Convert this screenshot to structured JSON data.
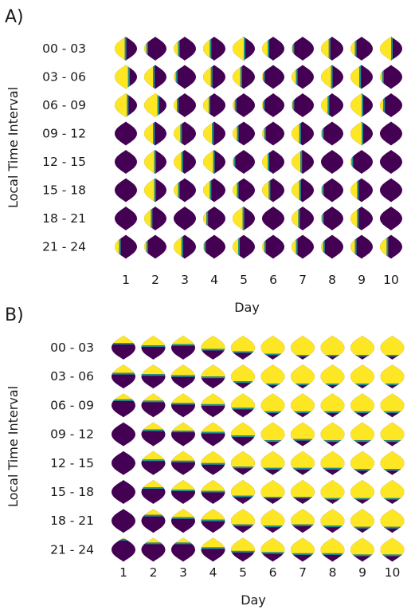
{
  "colors": {
    "low": "#440154",
    "mid": "#21918c",
    "high": "#fde725"
  },
  "chart_data": [
    {
      "panel": "A)",
      "type": "heatmap",
      "xlabel": "Day",
      "ylabel": "Local Time Interval",
      "columns": [
        "1",
        "2",
        "3",
        "4",
        "5",
        "6",
        "7",
        "8",
        "9",
        "10"
      ],
      "rows": [
        "00 - 03",
        "03 - 06",
        "06 - 09",
        "09 - 12",
        "12 - 15",
        "15 - 18",
        "18 - 21",
        "21 - 24"
      ],
      "cell_yellow_fraction": [
        [
          0.45,
          0.1,
          0.2,
          0.3,
          0.5,
          0.25,
          0.05,
          0.35,
          0.2,
          0.5
        ],
        [
          0.6,
          0.4,
          0.1,
          0.35,
          0.35,
          0.05,
          0.2,
          0.45,
          0.4,
          0.1
        ],
        [
          0.55,
          0.6,
          0.15,
          0.25,
          0.1,
          0.05,
          0.05,
          0.3,
          0.5,
          0.15
        ],
        [
          0.0,
          0.4,
          0.3,
          0.4,
          0.2,
          0.1,
          0.35,
          0.05,
          0.5,
          0.0
        ],
        [
          0.0,
          0.45,
          0.35,
          0.45,
          0.05,
          0.25,
          0.4,
          0.0,
          0.05,
          0.0
        ],
        [
          0.0,
          0.45,
          0.2,
          0.3,
          0.2,
          0.3,
          0.35,
          0.05,
          0.3,
          0.0
        ],
        [
          0.0,
          0.3,
          0.0,
          0.15,
          0.45,
          0.0,
          0.3,
          0.05,
          0.3,
          0.0
        ],
        [
          0.2,
          0.1,
          0.35,
          0.05,
          0.25,
          0.1,
          0.2,
          0.1,
          0.2,
          0.3
        ]
      ]
    },
    {
      "panel": "B)",
      "type": "heatmap",
      "xlabel": "Day",
      "ylabel": "Local Time Interval",
      "columns": [
        "1",
        "2",
        "3",
        "4",
        "5",
        "6",
        "7",
        "8",
        "9",
        "10"
      ],
      "rows": [
        "00 - 03",
        "03 - 06",
        "06 - 09",
        "09 - 12",
        "12 - 15",
        "15 - 18",
        "18 - 21",
        "21 - 24"
      ],
      "cell_yellow_fraction": [
        [
          0.3,
          0.4,
          0.35,
          0.55,
          0.65,
          0.75,
          0.8,
          0.8,
          0.8,
          0.8
        ],
        [
          0.35,
          0.4,
          0.45,
          0.5,
          0.7,
          0.8,
          0.8,
          0.8,
          0.8,
          0.8
        ],
        [
          0.25,
          0.3,
          0.4,
          0.45,
          0.6,
          0.75,
          0.75,
          0.75,
          0.75,
          0.75
        ],
        [
          0.0,
          0.3,
          0.35,
          0.4,
          0.55,
          0.75,
          0.7,
          0.75,
          0.75,
          0.75
        ],
        [
          0.0,
          0.35,
          0.4,
          0.5,
          0.65,
          0.7,
          0.7,
          0.7,
          0.75,
          0.75
        ],
        [
          0.0,
          0.3,
          0.4,
          0.45,
          0.65,
          0.7,
          0.7,
          0.75,
          0.75,
          0.75
        ],
        [
          0.0,
          0.25,
          0.35,
          0.45,
          0.65,
          0.7,
          0.65,
          0.7,
          0.75,
          0.75
        ],
        [
          0.05,
          0.2,
          0.2,
          0.4,
          0.55,
          0.6,
          0.65,
          0.65,
          0.7,
          0.7
        ]
      ]
    }
  ]
}
